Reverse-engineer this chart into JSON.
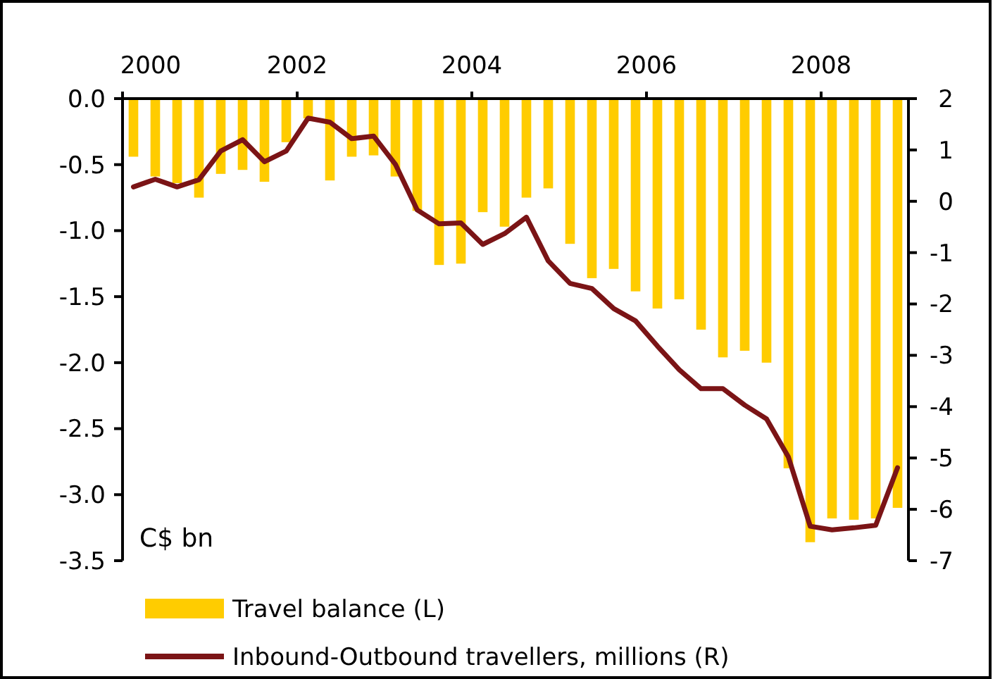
{
  "chart_data": {
    "type": "bar",
    "annotations": [
      "C$ bn"
    ],
    "x": [
      2000.125,
      2000.375,
      2000.625,
      2000.875,
      2001.125,
      2001.375,
      2001.625,
      2001.875,
      2002.125,
      2002.375,
      2002.625,
      2002.875,
      2003.125,
      2003.375,
      2003.625,
      2003.875,
      2004.125,
      2004.375,
      2004.625,
      2004.875,
      2005.125,
      2005.375,
      2005.625,
      2005.875,
      2006.125,
      2006.375,
      2006.625,
      2006.875,
      2007.125,
      2007.375,
      2007.625,
      2007.875,
      2008.125,
      2008.375,
      2008.625,
      2008.875
    ],
    "series": [
      {
        "name": "Travel balance (L)",
        "color": "#ffcc00",
        "values": [
          -0.44,
          -0.59,
          -0.64,
          -0.75,
          -0.57,
          -0.54,
          -0.63,
          -0.33,
          -0.15,
          -0.62,
          -0.44,
          -0.43,
          -0.59,
          -0.85,
          -1.26,
          -1.25,
          -0.86,
          -0.97,
          -0.75,
          -0.68,
          -1.1,
          -1.36,
          -1.29,
          -1.46,
          -1.59,
          -1.52,
          -1.75,
          -1.96,
          -1.91,
          -2.0,
          -2.8,
          -3.36,
          -3.18,
          -3.19,
          -3.18,
          -3.1
        ]
      },
      {
        "name": "Inbound-Outbound travellers, millions (R)",
        "type": "line",
        "axis": "y2",
        "color": "#7b1416",
        "values": [
          0.28,
          0.43,
          0.28,
          0.42,
          0.98,
          1.2,
          0.77,
          0.98,
          1.62,
          1.54,
          1.22,
          1.27,
          0.72,
          -0.17,
          -0.44,
          -0.42,
          -0.84,
          -0.63,
          -0.31,
          -1.16,
          -1.6,
          -1.7,
          -2.09,
          -2.33,
          -2.82,
          -3.28,
          -3.65,
          -3.65,
          -3.97,
          -4.24,
          -4.98,
          -6.33,
          -6.4,
          -6.36,
          -6.31,
          -5.19
        ]
      }
    ],
    "xlim": [
      2000,
      2009
    ],
    "xticks": [
      2000,
      2002,
      2004,
      2006,
      2008
    ],
    "ylim": [
      -3.5,
      0
    ],
    "yticks": [
      {
        "value": 0,
        "label": "0.0"
      },
      {
        "value": -0.5,
        "label": "-0.5"
      },
      {
        "value": -1,
        "label": "-1.0"
      },
      {
        "value": -1.5,
        "label": "-1.5"
      },
      {
        "value": -2,
        "label": "-2.0"
      },
      {
        "value": -2.5,
        "label": "-2.5"
      },
      {
        "value": -3,
        "label": "-3.0"
      },
      {
        "value": -3.5,
        "label": "-3.5"
      }
    ],
    "y2lim": [
      -7,
      2
    ],
    "y2ticks": [
      2,
      1,
      0,
      -1,
      -2,
      -3,
      -4,
      -5,
      -6,
      -7
    ],
    "grid": false,
    "legend": "bottom"
  }
}
